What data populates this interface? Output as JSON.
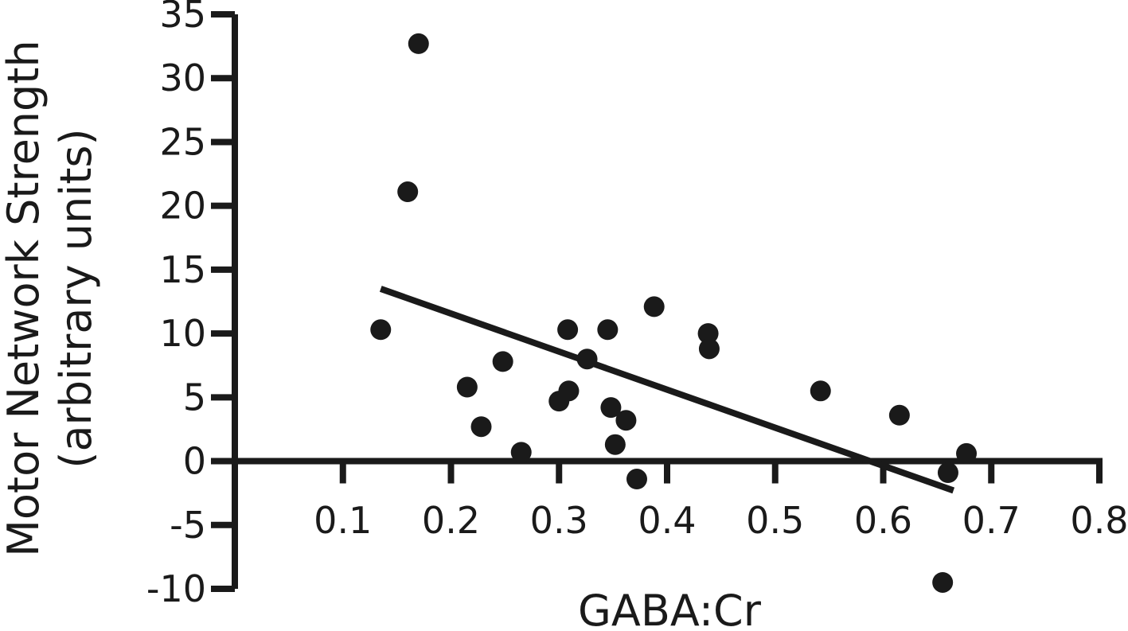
{
  "chart_data": {
    "type": "scatter",
    "title": "",
    "xlabel": "GABA:Cr",
    "ylabel": "Motor Network Strength",
    "ylabel_line2": "(arbitrary units)",
    "xlim": [
      0.0,
      0.8
    ],
    "ylim": [
      -10,
      35
    ],
    "x_ticks": [
      0.1,
      0.2,
      0.3,
      0.4,
      0.5,
      0.6,
      0.7,
      0.8
    ],
    "x_tick_labels": [
      "0.1",
      "0.2",
      "0.3",
      "0.4",
      "0.5",
      "0.6",
      "0.7",
      "0.8"
    ],
    "y_ticks": [
      -10,
      -5,
      0,
      5,
      10,
      15,
      20,
      25,
      30,
      35
    ],
    "y_tick_labels": [
      "-10",
      "-5",
      "0",
      "5",
      "10",
      "15",
      "20",
      "25",
      "30",
      "35"
    ],
    "x_axis_crosses_y_at": 0,
    "grid": false,
    "legend": false,
    "marker_color": "#1a1a1a",
    "points": [
      {
        "x": 0.135,
        "y": 10.3
      },
      {
        "x": 0.16,
        "y": 21.1
      },
      {
        "x": 0.17,
        "y": 32.7
      },
      {
        "x": 0.215,
        "y": 5.8
      },
      {
        "x": 0.228,
        "y": 2.7
      },
      {
        "x": 0.248,
        "y": 7.8
      },
      {
        "x": 0.265,
        "y": 0.7
      },
      {
        "x": 0.3,
        "y": 4.7
      },
      {
        "x": 0.308,
        "y": 10.3
      },
      {
        "x": 0.309,
        "y": 5.5
      },
      {
        "x": 0.326,
        "y": 8.0
      },
      {
        "x": 0.345,
        "y": 10.3
      },
      {
        "x": 0.348,
        "y": 4.2
      },
      {
        "x": 0.352,
        "y": 1.3
      },
      {
        "x": 0.362,
        "y": 3.2
      },
      {
        "x": 0.372,
        "y": -1.4
      },
      {
        "x": 0.388,
        "y": 12.1
      },
      {
        "x": 0.438,
        "y": 10.0
      },
      {
        "x": 0.439,
        "y": 8.8
      },
      {
        "x": 0.542,
        "y": 5.5
      },
      {
        "x": 0.615,
        "y": 3.6
      },
      {
        "x": 0.655,
        "y": -9.5
      },
      {
        "x": 0.66,
        "y": -0.9
      },
      {
        "x": 0.677,
        "y": 0.6
      }
    ],
    "trendline": {
      "x": [
        0.135,
        0.665
      ],
      "y": [
        13.5,
        -2.3
      ]
    }
  }
}
